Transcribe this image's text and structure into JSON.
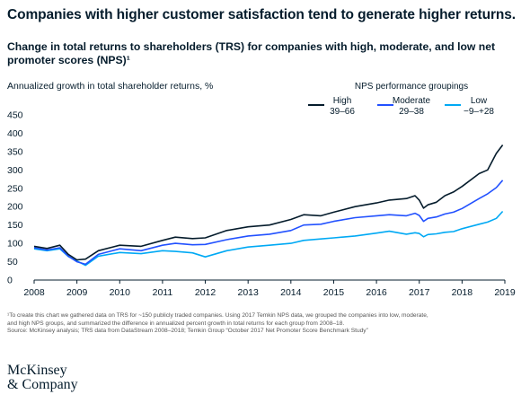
{
  "title": "Companies with higher customer satisfaction tend to generate higher returns.",
  "subtitle": "Change in total returns to shareholders (TRS) for companies with high, moderate, and low net promoter scores (NPS)¹",
  "footnotes": [
    "¹To create this chart we gathered data on TRS for ~150 publicly traded companies. Using 2017 Temkin NPS data, we grouped the companies into low, moderate,",
    "and high NPS groups, and summarized the difference in annualized percent growth in total returns for each group from 2008–18.",
    "Source: McKinsey analysis; TRS data from DataStream 2008–2018; Temkin Group “October 2017 Net Promoter Score Benchmark Study”"
  ],
  "logo": {
    "line1": "McKinsey",
    "line2": "& Company"
  },
  "chart_data": {
    "type": "line",
    "ylabel": "Annualized growth in total shareholder returns, %",
    "legend_title": "NPS performance groupings",
    "legend_position": "top-right",
    "ylim": [
      0,
      450
    ],
    "yticks": [
      0,
      50,
      100,
      150,
      200,
      250,
      300,
      350,
      400,
      450
    ],
    "xlim": [
      2008,
      2019
    ],
    "xticks": [
      "2008",
      "2009",
      "2010",
      "2011",
      "2012",
      "2013",
      "2014",
      "2015",
      "2016",
      "2017",
      "2018",
      "2019"
    ],
    "grid": false,
    "series": [
      {
        "name": "High",
        "range": "39–66",
        "color": "#051c2c",
        "x": [
          2008.0,
          2008.3,
          2008.6,
          2008.8,
          2009.0,
          2009.2,
          2009.5,
          2010.0,
          2010.5,
          2011.0,
          2011.3,
          2011.7,
          2012.0,
          2012.5,
          2013.0,
          2013.5,
          2014.0,
          2014.3,
          2014.7,
          2015.0,
          2015.5,
          2016.0,
          2016.3,
          2016.7,
          2016.9,
          2017.0,
          2017.1,
          2017.2,
          2017.4,
          2017.6,
          2017.8,
          2018.0,
          2018.4,
          2018.6,
          2018.8,
          2018.95
        ],
        "values": [
          92,
          86,
          95,
          70,
          55,
          57,
          80,
          95,
          92,
          108,
          117,
          113,
          115,
          135,
          145,
          150,
          165,
          178,
          175,
          185,
          200,
          210,
          218,
          222,
          230,
          218,
          196,
          205,
          212,
          230,
          240,
          255,
          290,
          300,
          345,
          368
        ]
      },
      {
        "name": "Moderate",
        "range": "29–38",
        "color": "#2251ff",
        "x": [
          2008.0,
          2008.3,
          2008.6,
          2008.8,
          2009.0,
          2009.2,
          2009.5,
          2010.0,
          2010.5,
          2011.0,
          2011.3,
          2011.7,
          2012.0,
          2012.5,
          2013.0,
          2013.5,
          2014.0,
          2014.3,
          2014.7,
          2015.0,
          2015.5,
          2016.0,
          2016.3,
          2016.7,
          2016.9,
          2017.0,
          2017.1,
          2017.2,
          2017.4,
          2017.6,
          2017.8,
          2018.0,
          2018.4,
          2018.6,
          2018.8,
          2018.95
        ],
        "values": [
          88,
          82,
          88,
          65,
          50,
          43,
          70,
          85,
          80,
          95,
          100,
          96,
          97,
          110,
          120,
          125,
          135,
          150,
          152,
          160,
          170,
          175,
          178,
          175,
          182,
          176,
          160,
          168,
          172,
          180,
          185,
          195,
          222,
          235,
          252,
          272
        ]
      },
      {
        "name": "Low",
        "range": "−9–+28",
        "color": "#00a9f4",
        "x": [
          2008.0,
          2008.3,
          2008.6,
          2008.8,
          2009.0,
          2009.2,
          2009.5,
          2010.0,
          2010.5,
          2011.0,
          2011.3,
          2011.7,
          2012.0,
          2012.5,
          2013.0,
          2013.5,
          2014.0,
          2014.3,
          2014.7,
          2015.0,
          2015.5,
          2016.0,
          2016.3,
          2016.7,
          2016.9,
          2017.0,
          2017.1,
          2017.2,
          2017.4,
          2017.6,
          2017.8,
          2018.0,
          2018.4,
          2018.6,
          2018.8,
          2018.95
        ],
        "values": [
          85,
          80,
          85,
          64,
          52,
          40,
          65,
          75,
          72,
          80,
          78,
          74,
          63,
          80,
          90,
          95,
          100,
          108,
          112,
          115,
          120,
          128,
          133,
          125,
          129,
          127,
          118,
          124,
          126,
          130,
          132,
          140,
          152,
          158,
          168,
          187
        ]
      }
    ]
  }
}
